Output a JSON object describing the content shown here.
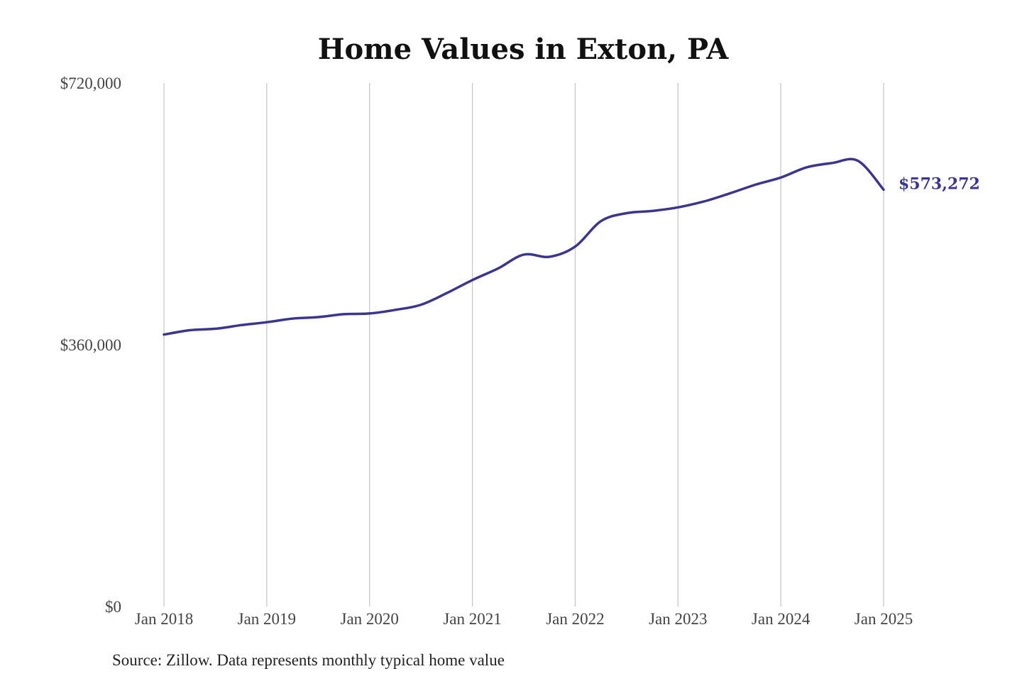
{
  "chart_data": {
    "type": "line",
    "title": "Home Values in Exton, PA",
    "source": "Source: Zillow. Data represents monthly typical home value",
    "x_ticks": [
      "Jan 2018",
      "Jan 2019",
      "Jan 2020",
      "Jan 2021",
      "Jan 2022",
      "Jan 2023",
      "Jan 2024",
      "Jan 2025"
    ],
    "y_ticks": [
      "$0",
      "$360,000",
      "$720,000"
    ],
    "ylim": [
      0,
      720000
    ],
    "xlim": [
      "2018-01",
      "2025-01"
    ],
    "grid": "vertical",
    "line_color": "#3a3591",
    "end_label": "$573,272",
    "series": [
      {
        "name": "",
        "x": [
          "2018-01",
          "2018-04",
          "2018-07",
          "2018-10",
          "2019-01",
          "2019-04",
          "2019-07",
          "2019-10",
          "2020-01",
          "2020-04",
          "2020-07",
          "2020-10",
          "2021-01",
          "2021-04",
          "2021-07",
          "2021-10",
          "2022-01",
          "2022-04",
          "2022-07",
          "2022-10",
          "2023-01",
          "2023-04",
          "2023-07",
          "2023-10",
          "2024-01",
          "2024-04",
          "2024-07",
          "2024-10",
          "2025-01"
        ],
        "values": [
          374000,
          380000,
          382000,
          387000,
          391000,
          396000,
          398000,
          402000,
          403000,
          408000,
          415000,
          431000,
          449000,
          465000,
          484000,
          481000,
          495000,
          530000,
          541000,
          544000,
          549000,
          557000,
          568000,
          580000,
          590000,
          604000,
          610000,
          613000,
          573272
        ]
      }
    ]
  }
}
